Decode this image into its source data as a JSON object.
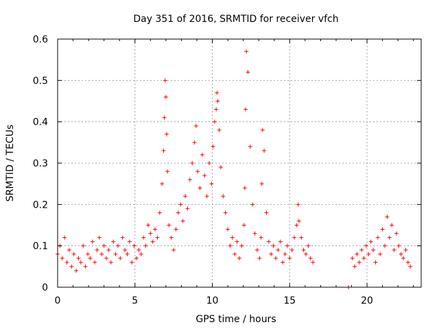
{
  "chart_data": {
    "type": "scatter",
    "title": "Day 351 of 2016, SRMTID for receiver vfch",
    "xlabel": "GPS time / hours",
    "ylabel": "SRMTID / TECUs",
    "xlim": [
      0,
      23.5
    ],
    "ylim": [
      0,
      0.6
    ],
    "xticks": [
      0,
      5,
      10,
      15,
      20
    ],
    "yticks": [
      0,
      0.1,
      0.2,
      0.3,
      0.4,
      0.5,
      0.6
    ],
    "xtick_labels": [
      "0",
      "5",
      "10",
      "15",
      "20"
    ],
    "ytick_labels": [
      "0",
      "0.1",
      "0.2",
      "0.3",
      "0.4",
      "0.5",
      "0.6"
    ],
    "grid": true,
    "marker": "+",
    "color": "#ff0000",
    "series": [
      {
        "name": "SRMTID",
        "x": [
          0.0,
          0.15,
          0.3,
          0.45,
          0.6,
          0.75,
          0.9,
          1.05,
          1.2,
          1.35,
          1.5,
          1.65,
          1.8,
          1.95,
          2.1,
          2.25,
          2.4,
          2.55,
          2.7,
          2.85,
          3.0,
          3.15,
          3.3,
          3.45,
          3.6,
          3.75,
          3.9,
          4.05,
          4.2,
          4.35,
          4.5,
          4.65,
          4.8,
          4.95,
          5.1,
          5.25,
          5.4,
          5.55,
          5.7,
          5.85,
          6.0,
          6.15,
          6.3,
          6.45,
          6.6,
          6.75,
          6.85,
          6.9,
          6.95,
          7.0,
          7.05,
          7.1,
          7.2,
          7.35,
          7.5,
          7.65,
          7.8,
          7.95,
          8.1,
          8.25,
          8.4,
          8.55,
          8.7,
          8.85,
          8.95,
          9.05,
          9.2,
          9.35,
          9.5,
          9.65,
          9.8,
          9.95,
          10.05,
          10.15,
          10.25,
          10.3,
          10.35,
          10.45,
          10.55,
          10.7,
          10.85,
          11.0,
          11.15,
          11.3,
          11.45,
          11.6,
          11.75,
          11.9,
          12.05,
          12.1,
          12.15,
          12.2,
          12.3,
          12.45,
          12.6,
          12.75,
          12.9,
          13.05,
          13.15,
          13.2,
          13.25,
          13.35,
          13.5,
          13.65,
          13.8,
          13.95,
          14.1,
          14.25,
          14.4,
          14.55,
          14.7,
          14.85,
          15.0,
          15.15,
          15.3,
          15.45,
          15.55,
          15.6,
          15.75,
          15.9,
          16.05,
          16.2,
          16.35,
          16.5,
          18.8,
          19.05,
          19.2,
          19.35,
          19.5,
          19.65,
          19.8,
          19.95,
          20.1,
          20.25,
          20.4,
          20.55,
          20.7,
          20.85,
          21.0,
          21.15,
          21.3,
          21.45,
          21.6,
          21.75,
          21.9,
          22.05,
          22.2,
          22.35,
          22.5,
          22.65,
          22.8
        ],
        "y": [
          0.08,
          0.1,
          0.07,
          0.12,
          0.06,
          0.09,
          0.05,
          0.08,
          0.04,
          0.07,
          0.06,
          0.1,
          0.05,
          0.08,
          0.07,
          0.11,
          0.06,
          0.09,
          0.12,
          0.08,
          0.1,
          0.07,
          0.09,
          0.06,
          0.11,
          0.08,
          0.1,
          0.07,
          0.12,
          0.09,
          0.08,
          0.11,
          0.06,
          0.1,
          0.07,
          0.09,
          0.08,
          0.12,
          0.1,
          0.15,
          0.13,
          0.11,
          0.14,
          0.12,
          0.18,
          0.25,
          0.33,
          0.41,
          0.5,
          0.46,
          0.37,
          0.28,
          0.15,
          0.12,
          0.09,
          0.14,
          0.18,
          0.2,
          0.16,
          0.22,
          0.19,
          0.26,
          0.3,
          0.35,
          0.39,
          0.28,
          0.24,
          0.32,
          0.27,
          0.22,
          0.3,
          0.25,
          0.34,
          0.4,
          0.43,
          0.47,
          0.45,
          0.38,
          0.29,
          0.22,
          0.18,
          0.14,
          0.1,
          0.12,
          0.08,
          0.11,
          0.07,
          0.1,
          0.15,
          0.24,
          0.43,
          0.57,
          0.52,
          0.34,
          0.2,
          0.13,
          0.09,
          0.07,
          0.12,
          0.25,
          0.38,
          0.33,
          0.18,
          0.11,
          0.08,
          0.1,
          0.07,
          0.09,
          0.11,
          0.06,
          0.08,
          0.1,
          0.07,
          0.09,
          0.12,
          0.15,
          0.2,
          0.16,
          0.12,
          0.09,
          0.08,
          0.1,
          0.07,
          0.06,
          0.0,
          0.07,
          0.05,
          0.08,
          0.06,
          0.09,
          0.07,
          0.1,
          0.08,
          0.11,
          0.09,
          0.06,
          0.12,
          0.08,
          0.14,
          0.1,
          0.17,
          0.12,
          0.15,
          0.09,
          0.13,
          0.1,
          0.08,
          0.07,
          0.09,
          0.06,
          0.05
        ]
      }
    ]
  }
}
